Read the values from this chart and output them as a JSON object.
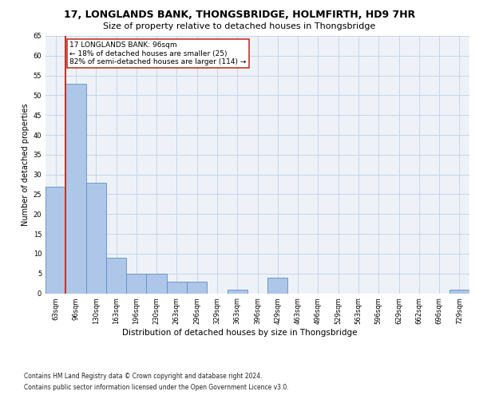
{
  "title": "17, LONGLANDS BANK, THONGSBRIDGE, HOLMFIRTH, HD9 7HR",
  "subtitle": "Size of property relative to detached houses in Thongsbridge",
  "xlabel": "Distribution of detached houses by size in Thongsbridge",
  "ylabel": "Number of detached properties",
  "bar_labels": [
    "63sqm",
    "96sqm",
    "130sqm",
    "163sqm",
    "196sqm",
    "230sqm",
    "263sqm",
    "296sqm",
    "329sqm",
    "363sqm",
    "396sqm",
    "429sqm",
    "463sqm",
    "496sqm",
    "529sqm",
    "563sqm",
    "596sqm",
    "629sqm",
    "662sqm",
    "696sqm",
    "729sqm"
  ],
  "bar_values": [
    27,
    53,
    28,
    9,
    5,
    5,
    3,
    3,
    0,
    1,
    0,
    4,
    0,
    0,
    0,
    0,
    0,
    0,
    0,
    0,
    1
  ],
  "bar_color": "#aec6e8",
  "bar_edge_color": "#5b8fc9",
  "vline_color": "#c0392b",
  "vline_index": 1,
  "annotation_line1": "17 LONGLANDS BANK: 96sqm",
  "annotation_line2": "← 18% of detached houses are smaller (25)",
  "annotation_line3": "82% of semi-detached houses are larger (114) →",
  "ylim": [
    0,
    65
  ],
  "yticks": [
    0,
    5,
    10,
    15,
    20,
    25,
    30,
    35,
    40,
    45,
    50,
    55,
    60,
    65
  ],
  "footer_line1": "Contains HM Land Registry data © Crown copyright and database right 2024.",
  "footer_line2": "Contains public sector information licensed under the Open Government Licence v3.0.",
  "bg_color": "#eef2f8",
  "grid_color": "#c8d4e8",
  "title_fontsize": 9,
  "subtitle_fontsize": 8,
  "tick_fontsize": 6,
  "ylabel_fontsize": 7,
  "xlabel_fontsize": 7.5,
  "footer_fontsize": 5.5,
  "annot_fontsize": 6.5
}
